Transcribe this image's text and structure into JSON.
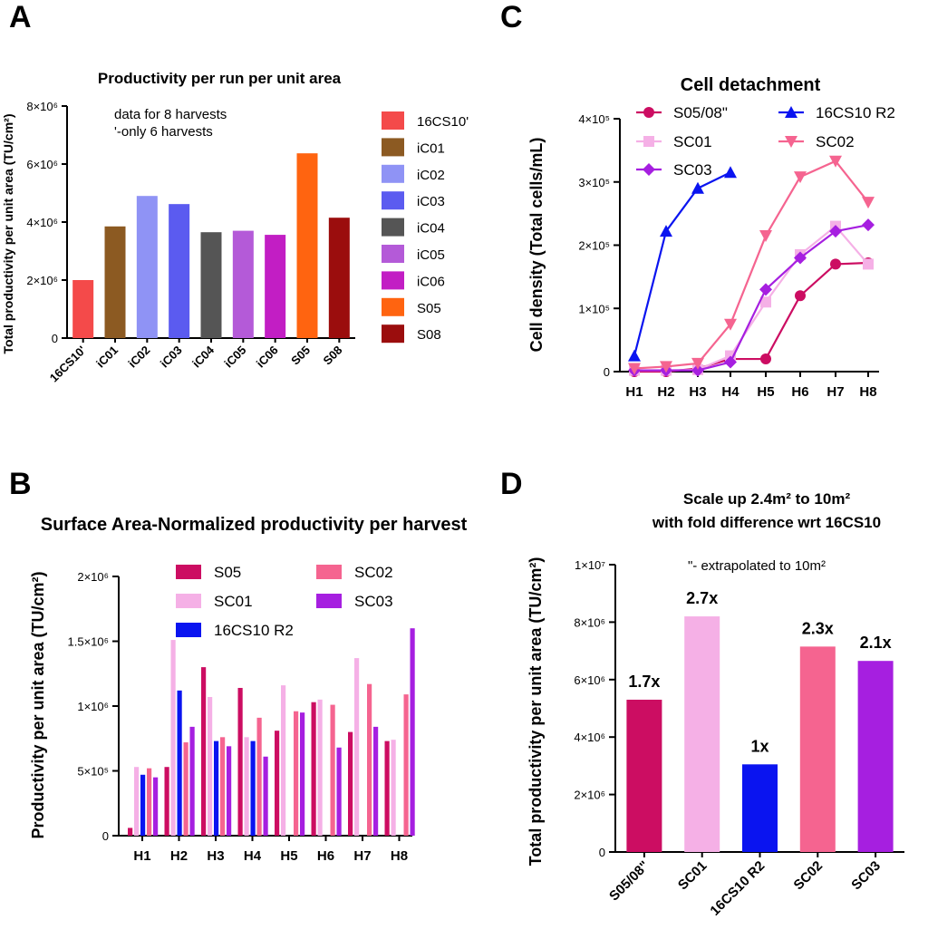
{
  "panels": {
    "A": "A",
    "B": "B",
    "C": "C",
    "D": "D"
  },
  "chart_data": [
    {
      "id": "A",
      "type": "bar",
      "title": "Productivity per run per unit area",
      "ylabel": "Total productivity per unit area (TU/cm²)",
      "xlabel": "",
      "ylim": [
        0,
        8000000
      ],
      "yticks": [
        0,
        2000000,
        4000000,
        6000000,
        8000000
      ],
      "ytick_labels": [
        "0",
        "2×10⁶",
        "4×10⁶",
        "6×10⁶",
        "8×10⁶"
      ],
      "annotation": [
        "data for 8 harvests",
        "'-only 6 harvests"
      ],
      "categories": [
        "16CS10'",
        "iC01",
        "iC02",
        "iC03",
        "iC04",
        "iC05",
        "iC06",
        "S05",
        "S08"
      ],
      "values": [
        2000000,
        3850000,
        4900000,
        4620000,
        3650000,
        3700000,
        3560000,
        6370000,
        4150000
      ],
      "colors": [
        "#f44a4a",
        "#8c5a22",
        "#8f93f5",
        "#5b5bf0",
        "#555555",
        "#b45ad8",
        "#c21ec4",
        "#ff6410",
        "#9b0d0d"
      ],
      "legend": [
        "16CS10'",
        "iC01",
        "iC02",
        "iC03",
        "iC04",
        "iC05",
        "iC06",
        "S05",
        "S08"
      ]
    },
    {
      "id": "B",
      "type": "bar",
      "title": "Surface Area-Normalized productivity per harvest",
      "ylabel": "Productivity per unit area (TU/cm²)",
      "xlabel": "",
      "ylim": [
        0,
        2000000
      ],
      "yticks": [
        0,
        500000,
        1000000,
        1500000,
        2000000
      ],
      "ytick_labels": [
        "0",
        "5×10⁵",
        "1×10⁶",
        "1.5×10⁶",
        "2×10⁶"
      ],
      "categories": [
        "H1",
        "H2",
        "H3",
        "H4",
        "H5",
        "H6",
        "H7",
        "H8"
      ],
      "series": [
        {
          "name": "S05",
          "color": "#cc0d62",
          "values": [
            60000,
            530000,
            1300000,
            1140000,
            810000,
            1030000,
            800000,
            730000
          ]
        },
        {
          "name": "SC01",
          "color": "#f5b0e6",
          "values": [
            530000,
            1510000,
            1070000,
            760000,
            1160000,
            1050000,
            1370000,
            740000
          ]
        },
        {
          "name": "16CS10 R2",
          "color": "#0a14f0",
          "values": [
            470000,
            1120000,
            730000,
            730000,
            null,
            null,
            null,
            null
          ]
        },
        {
          "name": "SC02",
          "color": "#f56490",
          "values": [
            520000,
            720000,
            760000,
            910000,
            960000,
            1010000,
            1170000,
            1090000
          ]
        },
        {
          "name": "SC03",
          "color": "#a61fe0",
          "values": [
            450000,
            840000,
            690000,
            610000,
            950000,
            680000,
            840000,
            1600000
          ]
        }
      ],
      "legend_order": [
        "S05",
        "SC02",
        "SC01",
        "SC03",
        "16CS10 R2"
      ]
    },
    {
      "id": "C",
      "type": "line",
      "title": "Cell detachment",
      "ylabel": "Cell density (Total cells/mL)",
      "xlabel": "",
      "ylim": [
        0,
        400000
      ],
      "yticks": [
        0,
        100000,
        200000,
        300000,
        400000
      ],
      "ytick_labels": [
        "0",
        "1×10⁵",
        "2×10⁵",
        "3×10⁵",
        "4×10⁵"
      ],
      "categories": [
        "H1",
        "H2",
        "H3",
        "H4",
        "H5",
        "H6",
        "H7",
        "H8"
      ],
      "series": [
        {
          "name": "S05/08\"",
          "color": "#cc0d62",
          "marker": "circle",
          "values": [
            0,
            0,
            5000,
            20000,
            20000,
            120000,
            170000,
            172000
          ]
        },
        {
          "name": "SC01",
          "color": "#f5b0e6",
          "marker": "square",
          "values": [
            2000,
            2000,
            3000,
            25000,
            110000,
            185000,
            230000,
            170000
          ]
        },
        {
          "name": "SC03",
          "color": "#a61fe0",
          "marker": "diamond",
          "values": [
            2000,
            2000,
            2000,
            15000,
            130000,
            180000,
            222000,
            232000
          ]
        },
        {
          "name": "16CS10 R2",
          "color": "#0a14f0",
          "marker": "triangle",
          "values": [
            25000,
            222000,
            290000,
            315000,
            null,
            null,
            null,
            null
          ]
        },
        {
          "name": "SC02",
          "color": "#f56490",
          "marker": "triangle-down",
          "values": [
            5000,
            8000,
            13000,
            75000,
            215000,
            308000,
            333000,
            268000
          ]
        }
      ],
      "legend_order": [
        "S05/08\"",
        "16CS10 R2",
        "SC01",
        "SC02",
        "SC03"
      ]
    },
    {
      "id": "D",
      "type": "bar",
      "title": "Scale up 2.4m² to 10m²",
      "subtitle": "with fold difference wrt 16CS10",
      "ylabel": "Total productivity per unit area (TU/cm²)",
      "xlabel": "",
      "ylim": [
        0,
        10000000
      ],
      "yticks": [
        0,
        2000000,
        4000000,
        6000000,
        8000000,
        10000000
      ],
      "ytick_labels": [
        "0",
        "2×10⁶",
        "4×10⁶",
        "6×10⁶",
        "8×10⁶",
        "1×10⁷"
      ],
      "annotation": "\"- extrapolated to 10m²",
      "categories": [
        "S05/08\"",
        "SC01",
        "16CS10 R2",
        "SC02",
        "SC03"
      ],
      "values": [
        5300000,
        8200000,
        3050000,
        7150000,
        6650000
      ],
      "colors": [
        "#cc0d62",
        "#f5b0e6",
        "#0a14f0",
        "#f56490",
        "#a61fe0"
      ],
      "data_labels": [
        "1.7x",
        "2.7x",
        "1x",
        "2.3x",
        "2.1x"
      ]
    }
  ]
}
